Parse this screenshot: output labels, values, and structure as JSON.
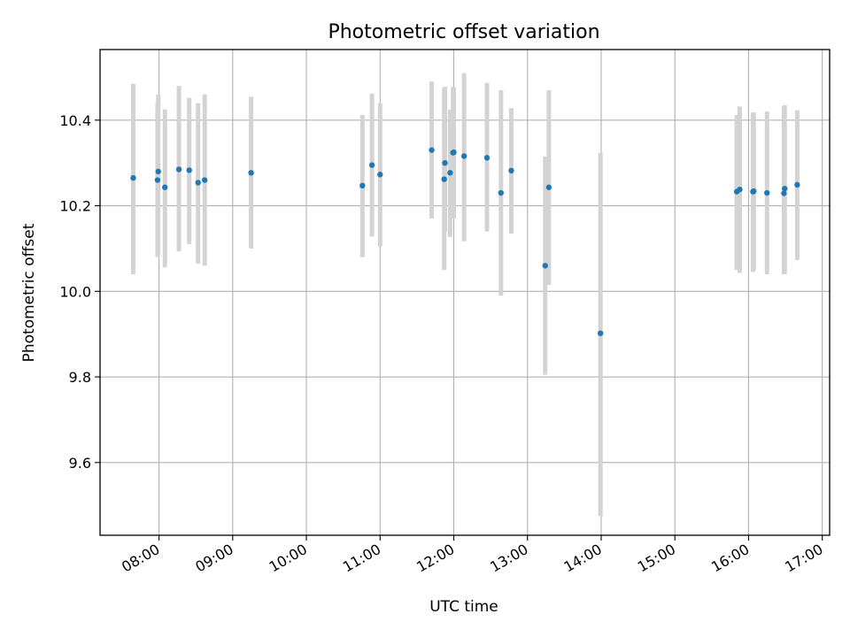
{
  "chart_data": {
    "type": "scatter",
    "title": "Photometric offset variation",
    "xlabel": "UTC time",
    "ylabel": "Photometric offset",
    "xlim": [
      7.2,
      17.1
    ],
    "ylim": [
      9.43,
      10.565
    ],
    "x_unit": "hours UTC",
    "x_ticks": [
      {
        "value": 8,
        "label": "08:00"
      },
      {
        "value": 9,
        "label": "09:00"
      },
      {
        "value": 10,
        "label": "10:00"
      },
      {
        "value": 11,
        "label": "11:00"
      },
      {
        "value": 12,
        "label": "12:00"
      },
      {
        "value": 13,
        "label": "13:00"
      },
      {
        "value": 14,
        "label": "14:00"
      },
      {
        "value": 15,
        "label": "15:00"
      },
      {
        "value": 16,
        "label": "16:00"
      },
      {
        "value": 17,
        "label": "17:00"
      }
    ],
    "y_ticks": [
      {
        "value": 9.6,
        "label": "9.6"
      },
      {
        "value": 9.8,
        "label": "9.8"
      },
      {
        "value": 10.0,
        "label": "10.0"
      },
      {
        "value": 10.2,
        "label": "10.2"
      },
      {
        "value": 10.4,
        "label": "10.4"
      }
    ],
    "grid": true,
    "series": [
      {
        "name": "offset",
        "marker_color": "#1f77b4",
        "errorbar_color": "#d3d3d3",
        "x": [
          7.65,
          7.98,
          7.99,
          8.08,
          8.27,
          8.41,
          8.53,
          8.62,
          9.25,
          10.76,
          10.89,
          11.0,
          11.7,
          11.87,
          11.88,
          11.95,
          11.99,
          12.0,
          12.14,
          12.45,
          12.64,
          12.78,
          13.24,
          13.29,
          13.99,
          15.84,
          15.88,
          16.06,
          16.07,
          16.25,
          16.48,
          16.49,
          16.66
        ],
        "y": [
          10.265,
          10.26,
          10.28,
          10.243,
          10.285,
          10.283,
          10.254,
          10.26,
          10.277,
          10.247,
          10.295,
          10.273,
          10.33,
          10.262,
          10.3,
          10.277,
          10.324,
          10.325,
          10.316,
          10.312,
          10.23,
          10.282,
          10.06,
          10.243,
          9.902,
          10.233,
          10.238,
          10.233,
          10.234,
          10.23,
          10.229,
          10.24,
          10.249
        ],
        "y_low": [
          10.04,
          10.08,
          10.085,
          10.056,
          10.093,
          10.11,
          10.065,
          10.06,
          10.1,
          10.08,
          10.128,
          10.105,
          10.17,
          10.05,
          10.14,
          10.127,
          10.17,
          10.17,
          10.117,
          10.14,
          9.99,
          10.135,
          9.805,
          10.015,
          9.475,
          10.05,
          10.043,
          10.045,
          10.05,
          10.04,
          10.04,
          10.04,
          10.073
        ],
        "y_high": [
          10.485,
          10.44,
          10.46,
          10.425,
          10.48,
          10.452,
          10.44,
          10.46,
          10.455,
          10.412,
          10.462,
          10.44,
          10.49,
          10.475,
          10.478,
          10.425,
          10.478,
          10.475,
          10.51,
          10.487,
          10.47,
          10.428,
          10.315,
          10.47,
          10.324,
          10.412,
          10.432,
          10.418,
          10.418,
          10.42,
          10.432,
          10.435,
          10.423
        ]
      }
    ]
  }
}
